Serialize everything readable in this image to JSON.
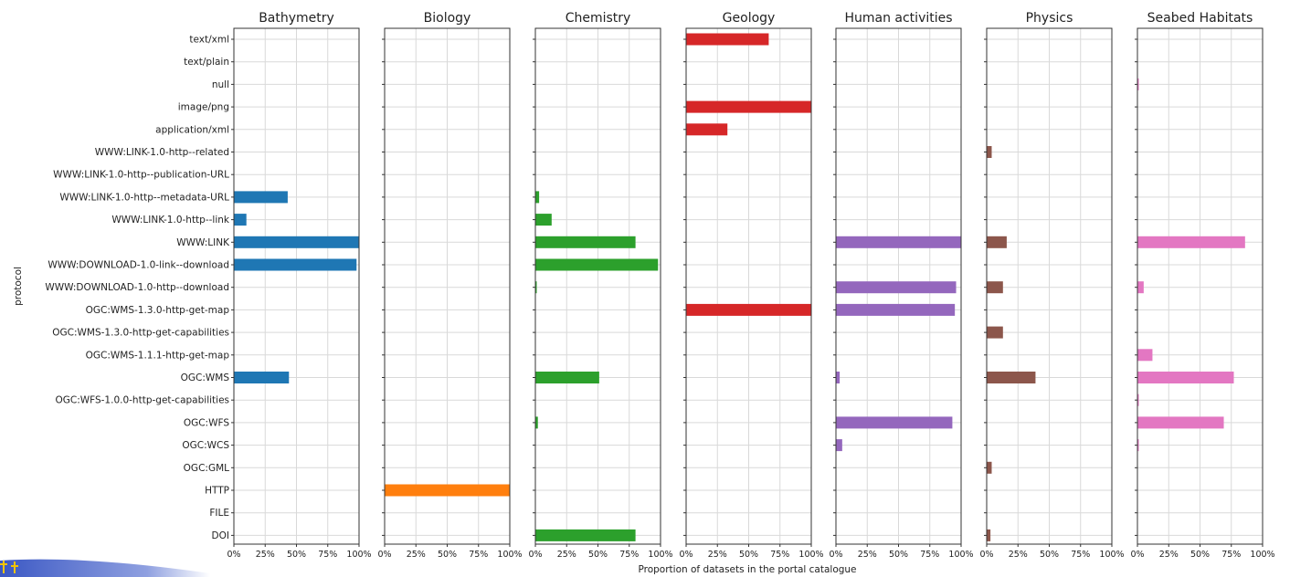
{
  "chart_data": {
    "type": "bar",
    "orientation": "horizontal",
    "ylabel": "protocol",
    "xlabel": "Proportion of datasets in the portal catalogue",
    "xlim": [
      0,
      100
    ],
    "x_ticks": [
      "0%",
      "25%",
      "50%",
      "75%",
      "100%"
    ],
    "grid": true,
    "categories": [
      "text/xml",
      "text/plain",
      "null",
      "image/png",
      "application/xml",
      "WWW:LINK-1.0-http--related",
      "WWW:LINK-1.0-http--publication-URL",
      "WWW:LINK-1.0-http--metadata-URL",
      "WWW:LINK-1.0-http--link",
      "WWW:LINK",
      "WWW:DOWNLOAD-1.0-link--download",
      "WWW:DOWNLOAD-1.0-http--download",
      "OGC:WMS-1.3.0-http-get-map",
      "OGC:WMS-1.3.0-http-get-capabilities",
      "OGC:WMS-1.1.1-http-get-map",
      "OGC:WMS",
      "OGC:WFS-1.0.0-http-get-capabilities",
      "OGC:WFS",
      "OGC:WCS",
      "OGC:GML",
      "HTTP",
      "FILE",
      "DOI"
    ],
    "series": [
      {
        "name": "Bathymetry",
        "color": "#1f77b4",
        "values": [
          0,
          0,
          0,
          0,
          0,
          0,
          0,
          43,
          10,
          100,
          98,
          0,
          0,
          0,
          0,
          44,
          0,
          0,
          0,
          0,
          0,
          0,
          0
        ]
      },
      {
        "name": "Biology",
        "color": "#ff7f0e",
        "values": [
          0,
          0,
          0,
          0,
          0,
          0,
          0,
          0,
          0,
          0,
          0,
          0,
          0,
          0,
          0,
          0,
          0,
          0,
          0,
          0,
          100,
          0,
          0
        ]
      },
      {
        "name": "Chemistry",
        "color": "#2ca02c",
        "values": [
          0,
          0,
          0,
          0,
          0,
          0,
          0,
          3,
          13,
          80,
          98,
          1,
          0,
          0,
          0,
          51,
          0,
          2,
          0,
          0,
          0,
          0,
          80
        ]
      },
      {
        "name": "Geology",
        "color": "#d62728",
        "values": [
          66,
          0,
          0,
          100,
          33,
          0,
          0,
          0,
          0,
          0,
          0,
          0,
          100,
          0,
          0,
          0,
          0,
          0,
          0,
          0,
          0,
          0,
          0
        ]
      },
      {
        "name": "Human activities",
        "color": "#9467bd",
        "values": [
          0,
          0,
          0,
          0,
          0,
          0,
          0,
          0,
          0,
          100,
          0,
          96,
          95,
          0,
          0,
          3,
          0,
          93,
          5,
          0,
          0,
          0,
          0
        ]
      },
      {
        "name": "Physics",
        "color": "#8c564b",
        "values": [
          0,
          0,
          0,
          0,
          0,
          4,
          0,
          0,
          0,
          16,
          0,
          13,
          0,
          13,
          0,
          39,
          0,
          0,
          0,
          4,
          0,
          0,
          3
        ]
      },
      {
        "name": "Seabed Habitats",
        "color": "#e377c2",
        "values": [
          0,
          0,
          1,
          0,
          0,
          0,
          0,
          0,
          0,
          86,
          0,
          5,
          0,
          0,
          12,
          77,
          1,
          69,
          1,
          0,
          0,
          0,
          0
        ]
      }
    ]
  }
}
